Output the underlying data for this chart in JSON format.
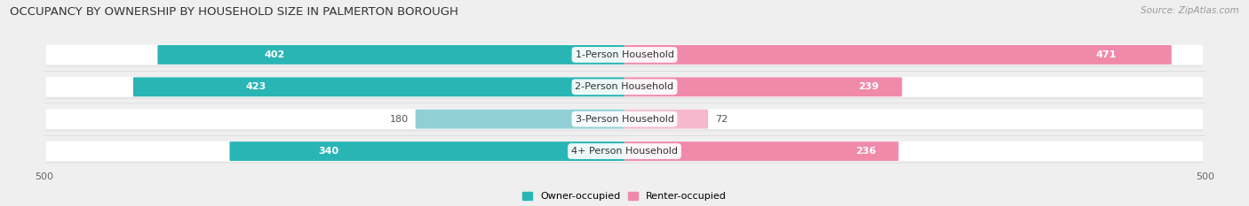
{
  "title": "OCCUPANCY BY OWNERSHIP BY HOUSEHOLD SIZE IN PALMERTON BOROUGH",
  "source": "Source: ZipAtlas.com",
  "categories": [
    "1-Person Household",
    "2-Person Household",
    "3-Person Household",
    "4+ Person Household"
  ],
  "owner_values": [
    402,
    423,
    180,
    340
  ],
  "renter_values": [
    471,
    239,
    72,
    236
  ],
  "owner_color": "#2ab5b5",
  "owner_color_light": "#90d0d5",
  "renter_color": "#f08aab",
  "renter_color_light": "#f5b8cc",
  "axis_max": 500,
  "background_color": "#efefef",
  "bar_background": "#ffffff",
  "bar_stripe_color": "#e5e5e5",
  "legend_owner": "Owner-occupied",
  "legend_renter": "Renter-occupied",
  "title_fontsize": 9.5,
  "source_fontsize": 7.5,
  "label_fontsize": 8,
  "cat_fontsize": 8,
  "tick_fontsize": 8
}
